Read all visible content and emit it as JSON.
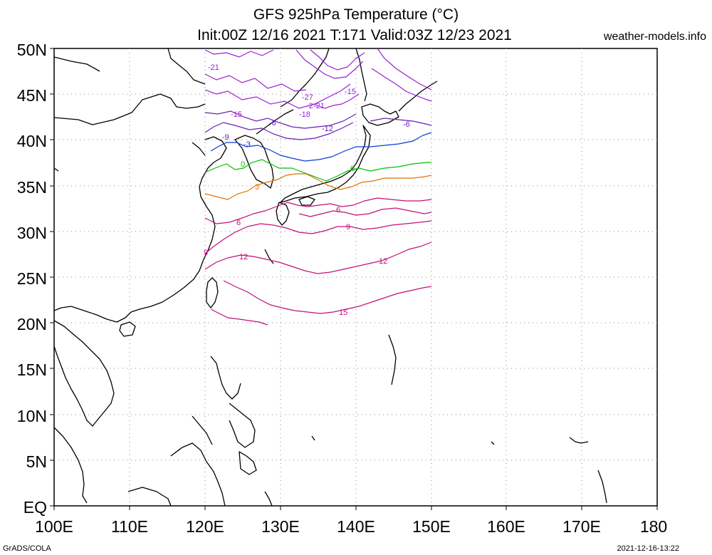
{
  "title_line1": "GFS 925hPa Temperature (°C)",
  "title_line2": "Init:00Z 12/16 2021 T:171 Valid:03Z 12/23 2021",
  "site": "weather-models.info",
  "credit_left": "GrADS/COLA",
  "credit_right": "2021-12-16-13:22",
  "x_ticks": [
    "100E",
    "110E",
    "120E",
    "130E",
    "140E",
    "150E",
    "160E",
    "170E",
    "180"
  ],
  "y_ticks": [
    "50N",
    "45N",
    "40N",
    "35N",
    "30N",
    "25N",
    "20N",
    "15N",
    "10N",
    "5N",
    "EQ"
  ],
  "colors": {
    "coast": "#000000",
    "grid": "#888888",
    "purple": "#9a1fd6",
    "violet": "#6a1fb5",
    "blue": "#0a3cd2",
    "green": "#00c000",
    "orange": "#e07400",
    "magenta": "#c0107a"
  },
  "contour_labels": [
    {
      "text": "-21",
      "color": "purple"
    },
    {
      "text": "-15",
      "color": "purple"
    },
    {
      "text": "-27",
      "color": "purple"
    },
    {
      "text": "-2",
      "color": "purple"
    },
    {
      "text": "-21",
      "color": "purple"
    },
    {
      "text": "-18",
      "color": "purple"
    },
    {
      "text": "-15",
      "color": "purple"
    },
    {
      "text": "-12",
      "color": "violet"
    },
    {
      "text": "-9",
      "color": "violet"
    },
    {
      "text": "-6",
      "color": "violet"
    },
    {
      "text": "-6",
      "color": "violet"
    },
    {
      "text": "-3",
      "color": "blue"
    },
    {
      "text": "0",
      "color": "green"
    },
    {
      "text": "0",
      "color": "green"
    },
    {
      "text": "3",
      "color": "orange"
    },
    {
      "text": "6",
      "color": "magenta"
    },
    {
      "text": "6",
      "color": "magenta"
    },
    {
      "text": "9",
      "color": "magenta"
    },
    {
      "text": "9",
      "color": "magenta"
    },
    {
      "text": "12",
      "color": "magenta"
    },
    {
      "text": "12",
      "color": "magenta"
    },
    {
      "text": "15",
      "color": "magenta"
    }
  ]
}
